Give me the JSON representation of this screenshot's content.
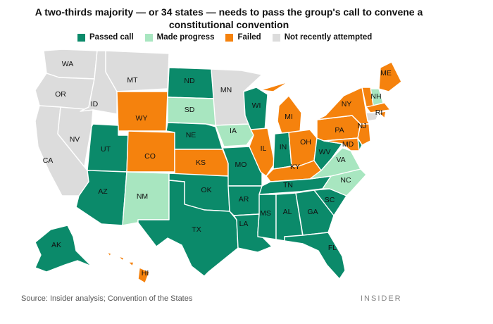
{
  "title": {
    "line1": "A two-thirds majority — or 34 states — needs to pass the group's call to convene a",
    "line2": "constitutional convention"
  },
  "legend": [
    {
      "key": "passed",
      "label": "Passed call"
    },
    {
      "key": "progress",
      "label": "Made progress"
    },
    {
      "key": "failed",
      "label": "Failed"
    },
    {
      "key": "none",
      "label": "Not recently attempted"
    }
  ],
  "colors": {
    "passed": "#0b8a6a",
    "progress": "#a8e6c0",
    "failed": "#f5820d",
    "none": "#dcdcdc"
  },
  "states": {
    "WA": "none",
    "OR": "none",
    "CA": "none",
    "NV": "none",
    "ID": "none",
    "MT": "none",
    "WY": "failed",
    "UT": "passed",
    "AZ": "passed",
    "CO": "failed",
    "NM": "progress",
    "ND": "passed",
    "SD": "progress",
    "NE": "passed",
    "KS": "failed",
    "OK": "passed",
    "TX": "passed",
    "MN": "none",
    "IA": "progress",
    "MO": "passed",
    "AR": "passed",
    "LA": "passed",
    "WI": "passed",
    "IL": "failed",
    "MI": "failed",
    "IN": "passed",
    "OH": "failed",
    "KY": "failed",
    "TN": "passed",
    "MS": "passed",
    "AL": "passed",
    "GA": "passed",
    "FL": "passed",
    "SC": "passed",
    "NC": "progress",
    "VA": "progress",
    "WV": "passed",
    "PA": "failed",
    "NY": "failed",
    "NJ": "failed",
    "MD": "failed",
    "DE": "passed",
    "ME": "failed",
    "NH": "progress",
    "VT": "failed",
    "MA": "failed",
    "RI": "failed",
    "CT": "none",
    "AK": "passed",
    "HI": "failed"
  },
  "labels": [
    "WA",
    "OR",
    "CA",
    "NV",
    "ID",
    "MT",
    "WY",
    "UT",
    "AZ",
    "CO",
    "NM",
    "ND",
    "SD",
    "NE",
    "KS",
    "OK",
    "TX",
    "MN",
    "IA",
    "MO",
    "AR",
    "LA",
    "WI",
    "IL",
    "MI",
    "IN",
    "OH",
    "KY",
    "TN",
    "MS",
    "AL",
    "GA",
    "FL",
    "SC",
    "NC",
    "VA",
    "WV",
    "PA",
    "NY",
    "NJ",
    "MD",
    "ME",
    "NH",
    "RI",
    "AK",
    "HI"
  ],
  "source": "Source: Insider analysis; Convention of the States",
  "brand": "INSIDER"
}
